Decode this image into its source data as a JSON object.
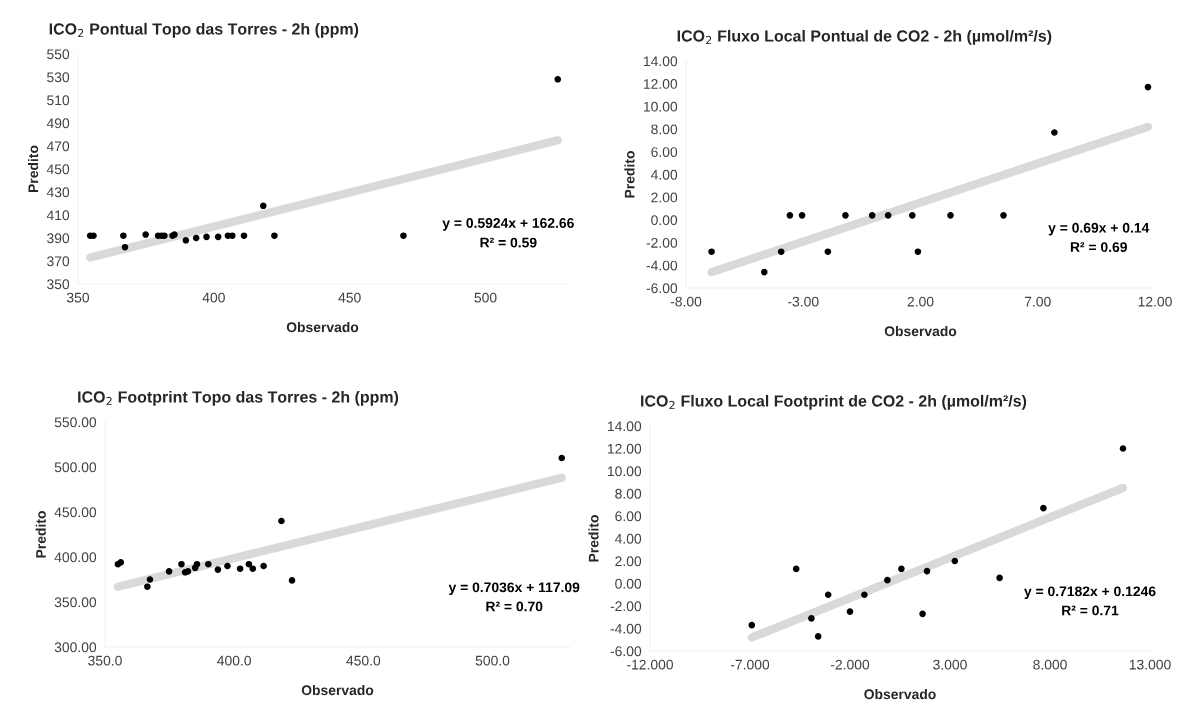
{
  "chart_data": [
    {
      "type": "scatter",
      "title": "ICO$_{2}$ Pontual Topo das Torres - 2h (ppm)",
      "xlabel": "Observado",
      "ylabel": "Predito",
      "xlim": [
        350,
        530
      ],
      "xticks": [
        350,
        400,
        450,
        500
      ],
      "ylim": [
        350,
        550
      ],
      "yticks": [
        350,
        370,
        390,
        410,
        430,
        450,
        470,
        490,
        510,
        530,
        550
      ],
      "grid": false,
      "series": [
        {
          "marker": "circle",
          "color": "#000000",
          "x": [
            354.5,
            355.7,
            366.7,
            367.3,
            374.9,
            379.5,
            380.8,
            381.8,
            384.8,
            385.5,
            389.7,
            393.5,
            397.3,
            401.6,
            405.2,
            406.8,
            411.1,
            418.2,
            422.3,
            469.8,
            526.6
          ],
          "values": [
            392,
            392,
            392,
            382,
            393,
            392,
            392,
            392,
            392,
            393,
            388,
            390,
            391,
            391,
            392,
            392,
            392,
            418,
            392,
            392,
            528
          ]
        },
        {
          "type": "line",
          "color": "#d9d9d9",
          "x": [
            354.5,
            526.6
          ],
          "values": [
            373,
            475
          ]
        }
      ],
      "annotations": [
        "y = 0.5924x + 162.66",
        "R² = 0.59"
      ]
    },
    {
      "type": "scatter",
      "title": "ICO$_{2}$ Fluxo Local Pontual de CO2 - 2h (µmol/m²/s)",
      "xlabel": "Observado",
      "ylabel": "Predito",
      "xlim": [
        -8,
        12
      ],
      "xticks": [
        {
          "value": -8,
          "label": "-8.00"
        },
        {
          "value": -3,
          "label": "-3.00"
        },
        {
          "value": 2,
          "label": "2.00"
        },
        {
          "value": 7,
          "label": "7.00"
        },
        {
          "value": 12,
          "label": "12.00"
        }
      ],
      "ylim": [
        -6,
        14
      ],
      "yticks": [
        {
          "value": -6,
          "label": "-6.00"
        },
        {
          "value": -4,
          "label": "-4.00"
        },
        {
          "value": -2,
          "label": "-2.00"
        },
        {
          "value": 0,
          "label": "0.00"
        },
        {
          "value": 2,
          "label": "2.00"
        },
        {
          "value": 4,
          "label": "4.00"
        },
        {
          "value": 6,
          "label": "6.00"
        },
        {
          "value": 8,
          "label": "8.00"
        },
        {
          "value": 10,
          "label": "10.00"
        },
        {
          "value": 12,
          "label": "12.00"
        },
        {
          "value": 14,
          "label": "14.00"
        }
      ],
      "grid": false,
      "series": [
        {
          "marker": "circle",
          "color": "#000000",
          "x": [
            -6.91,
            -4.66,
            -3.94,
            -3.57,
            -3.05,
            -1.95,
            -1.2,
            -0.06,
            0.62,
            1.65,
            1.89,
            3.28,
            5.54,
            7.71,
            11.7
          ],
          "values": [
            -2.8,
            -4.6,
            -2.8,
            0.4,
            0.4,
            -2.8,
            0.4,
            0.4,
            0.4,
            0.4,
            -2.8,
            0.4,
            0.4,
            7.7,
            11.7
          ]
        },
        {
          "type": "line",
          "color": "#d9d9d9",
          "x": [
            -6.91,
            11.7
          ],
          "values": [
            -4.6,
            8.2
          ]
        }
      ],
      "annotations": [
        "y = 0.69x + 0.14",
        "R² = 0.69"
      ]
    },
    {
      "type": "scatter",
      "title": "ICO$_{2}$ Footprint Topo das Torres - 2h (ppm)",
      "xlabel": "Observado",
      "ylabel": "Predito",
      "xlim": [
        350,
        530
      ],
      "xticks": [
        {
          "value": 350,
          "label": "350.0"
        },
        {
          "value": 400,
          "label": "400.0"
        },
        {
          "value": 450,
          "label": "450.0"
        },
        {
          "value": 500,
          "label": "500.0"
        }
      ],
      "ylim": [
        300,
        550
      ],
      "yticks": [
        {
          "value": 300,
          "label": "300.00"
        },
        {
          "value": 350,
          "label": "350.00"
        },
        {
          "value": 400,
          "label": "400.00"
        },
        {
          "value": 450,
          "label": "450.00"
        },
        {
          "value": 500,
          "label": "500.00"
        },
        {
          "value": 550,
          "label": "550.00"
        }
      ],
      "grid": false,
      "series": [
        {
          "marker": "circle",
          "color": "#000000",
          "x": [
            355.0,
            356.1,
            366.4,
            367.4,
            374.8,
            379.6,
            381.0,
            382.1,
            384.9,
            385.6,
            390.0,
            393.7,
            397.4,
            402.3,
            405.7,
            407.2,
            411.4,
            418.3,
            422.4,
            526.8
          ],
          "values": [
            392,
            394,
            367,
            375,
            384,
            392,
            383,
            384,
            388,
            392,
            392,
            386,
            390,
            387,
            392,
            387,
            390,
            440,
            374,
            510
          ]
        },
        {
          "type": "line",
          "color": "#d9d9d9",
          "x": [
            355.0,
            526.8
          ],
          "values": [
            367,
            488
          ]
        }
      ],
      "annotations": [
        "y = 0.7036x + 117.09",
        "R² = 0.70"
      ]
    },
    {
      "type": "scatter",
      "title": "ICO$_{2}$ Fluxo Local Footprint de CO2 - 2h (µmol/m²/s)",
      "xlabel": "Observado",
      "ylabel": "Predito",
      "xlim": [
        -12,
        13
      ],
      "xticks": [
        {
          "value": -12,
          "label": "-12.000"
        },
        {
          "value": -7,
          "label": "-7.000"
        },
        {
          "value": -2,
          "label": "-2.000"
        },
        {
          "value": 3,
          "label": "3.000"
        },
        {
          "value": 8,
          "label": "8.000"
        },
        {
          "value": 13,
          "label": "13.000"
        }
      ],
      "ylim": [
        -6,
        14
      ],
      "yticks": [
        {
          "value": -6,
          "label": "-6.00"
        },
        {
          "value": -4,
          "label": "-4.00"
        },
        {
          "value": -2,
          "label": "-2.00"
        },
        {
          "value": 0,
          "label": "0.00"
        },
        {
          "value": 2,
          "label": "2.00"
        },
        {
          "value": 4,
          "label": "4.00"
        },
        {
          "value": 6,
          "label": "6.00"
        },
        {
          "value": 8,
          "label": "8.00"
        },
        {
          "value": 10,
          "label": "10.00"
        },
        {
          "value": 12,
          "label": "12.00"
        },
        {
          "value": 14,
          "label": "14.00"
        }
      ],
      "grid": false,
      "series": [
        {
          "marker": "circle",
          "color": "#000000",
          "x": [
            -6.91,
            -4.69,
            -3.93,
            -3.59,
            -3.09,
            -2.0,
            -1.28,
            -0.13,
            0.57,
            1.63,
            1.85,
            3.24,
            5.48,
            7.67,
            11.65
          ],
          "values": [
            -3.7,
            1.3,
            -3.1,
            -4.7,
            -1.0,
            -2.5,
            -1.0,
            0.3,
            1.3,
            -2.7,
            1.1,
            2.0,
            0.5,
            6.7,
            12.0
          ]
        },
        {
          "type": "line",
          "color": "#d9d9d9",
          "x": [
            -6.91,
            11.65
          ],
          "values": [
            -4.8,
            8.5
          ]
        }
      ],
      "annotations": [
        "y = 0.7182x + 0.1246",
        "R² = 0.71"
      ]
    }
  ]
}
